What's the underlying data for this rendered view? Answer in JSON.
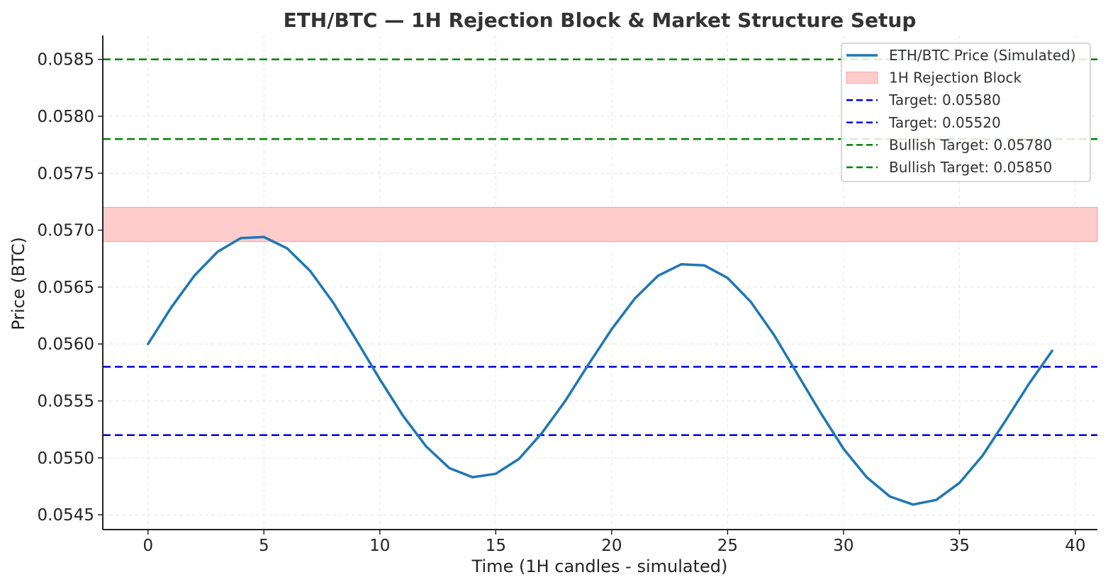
{
  "chart_data": {
    "type": "line",
    "title": "ETH/BTC — 1H Rejection Block & Market Structure Setup",
    "xlabel": "Time (1H candles - simulated)",
    "ylabel": "Price (BTC)",
    "xlim": [
      -1.95,
      40.95
    ],
    "ylim": [
      0.05437,
      0.05871
    ],
    "xticks": [
      0,
      5,
      10,
      15,
      20,
      25,
      30,
      35,
      40
    ],
    "xtick_labels": [
      "0",
      "5",
      "10",
      "15",
      "20",
      "25",
      "30",
      "35",
      "40"
    ],
    "yticks": [
      0.0545,
      0.055,
      0.0555,
      0.056,
      0.0565,
      0.057,
      0.0575,
      0.058,
      0.0585
    ],
    "ytick_labels": [
      "0.0545",
      "0.0550",
      "0.0555",
      "0.0560",
      "0.0565",
      "0.0570",
      "0.0575",
      "0.0580",
      "0.0585"
    ],
    "grid": true,
    "legend_position": "top-right",
    "series": [
      {
        "name": "ETH/BTC Price (Simulated)",
        "color": "#1f77b4",
        "x": [
          0,
          1,
          2,
          3,
          4,
          5,
          6,
          7,
          8,
          9,
          10,
          11,
          12,
          13,
          14,
          15,
          16,
          17,
          18,
          19,
          20,
          21,
          22,
          23,
          24,
          25,
          26,
          27,
          28,
          29,
          30,
          31,
          32,
          33,
          34,
          35,
          36,
          37,
          38,
          39
        ],
        "y": [
          0.056,
          0.05632,
          0.0566,
          0.05681,
          0.05693,
          0.05694,
          0.05684,
          0.05664,
          0.05636,
          0.05603,
          0.05569,
          0.05537,
          0.0551,
          0.05491,
          0.05483,
          0.05486,
          0.05499,
          0.05522,
          0.0555,
          0.05582,
          0.05613,
          0.0564,
          0.0566,
          0.0567,
          0.05669,
          0.05658,
          0.05637,
          0.05608,
          0.05574,
          0.0554,
          0.05508,
          0.05483,
          0.05466,
          0.05459,
          0.05463,
          0.05478,
          0.05502,
          0.05533,
          0.05565,
          0.05594
        ]
      }
    ],
    "bands": [
      {
        "name": "1H Rejection Block",
        "ymin": 0.0569,
        "ymax": 0.0572,
        "color": "#ffcccc",
        "edge_color": "#f4a8a8"
      }
    ],
    "hlines": [
      {
        "name": "Target: 0.05580",
        "y": 0.0558,
        "color": "#0000dd"
      },
      {
        "name": "Target: 0.05520",
        "y": 0.0552,
        "color": "#0000dd"
      },
      {
        "name": "Bullish Target: 0.05780",
        "y": 0.0578,
        "color": "#008000"
      },
      {
        "name": "Bullish Target: 0.05850",
        "y": 0.0585,
        "color": "#008000"
      }
    ]
  }
}
